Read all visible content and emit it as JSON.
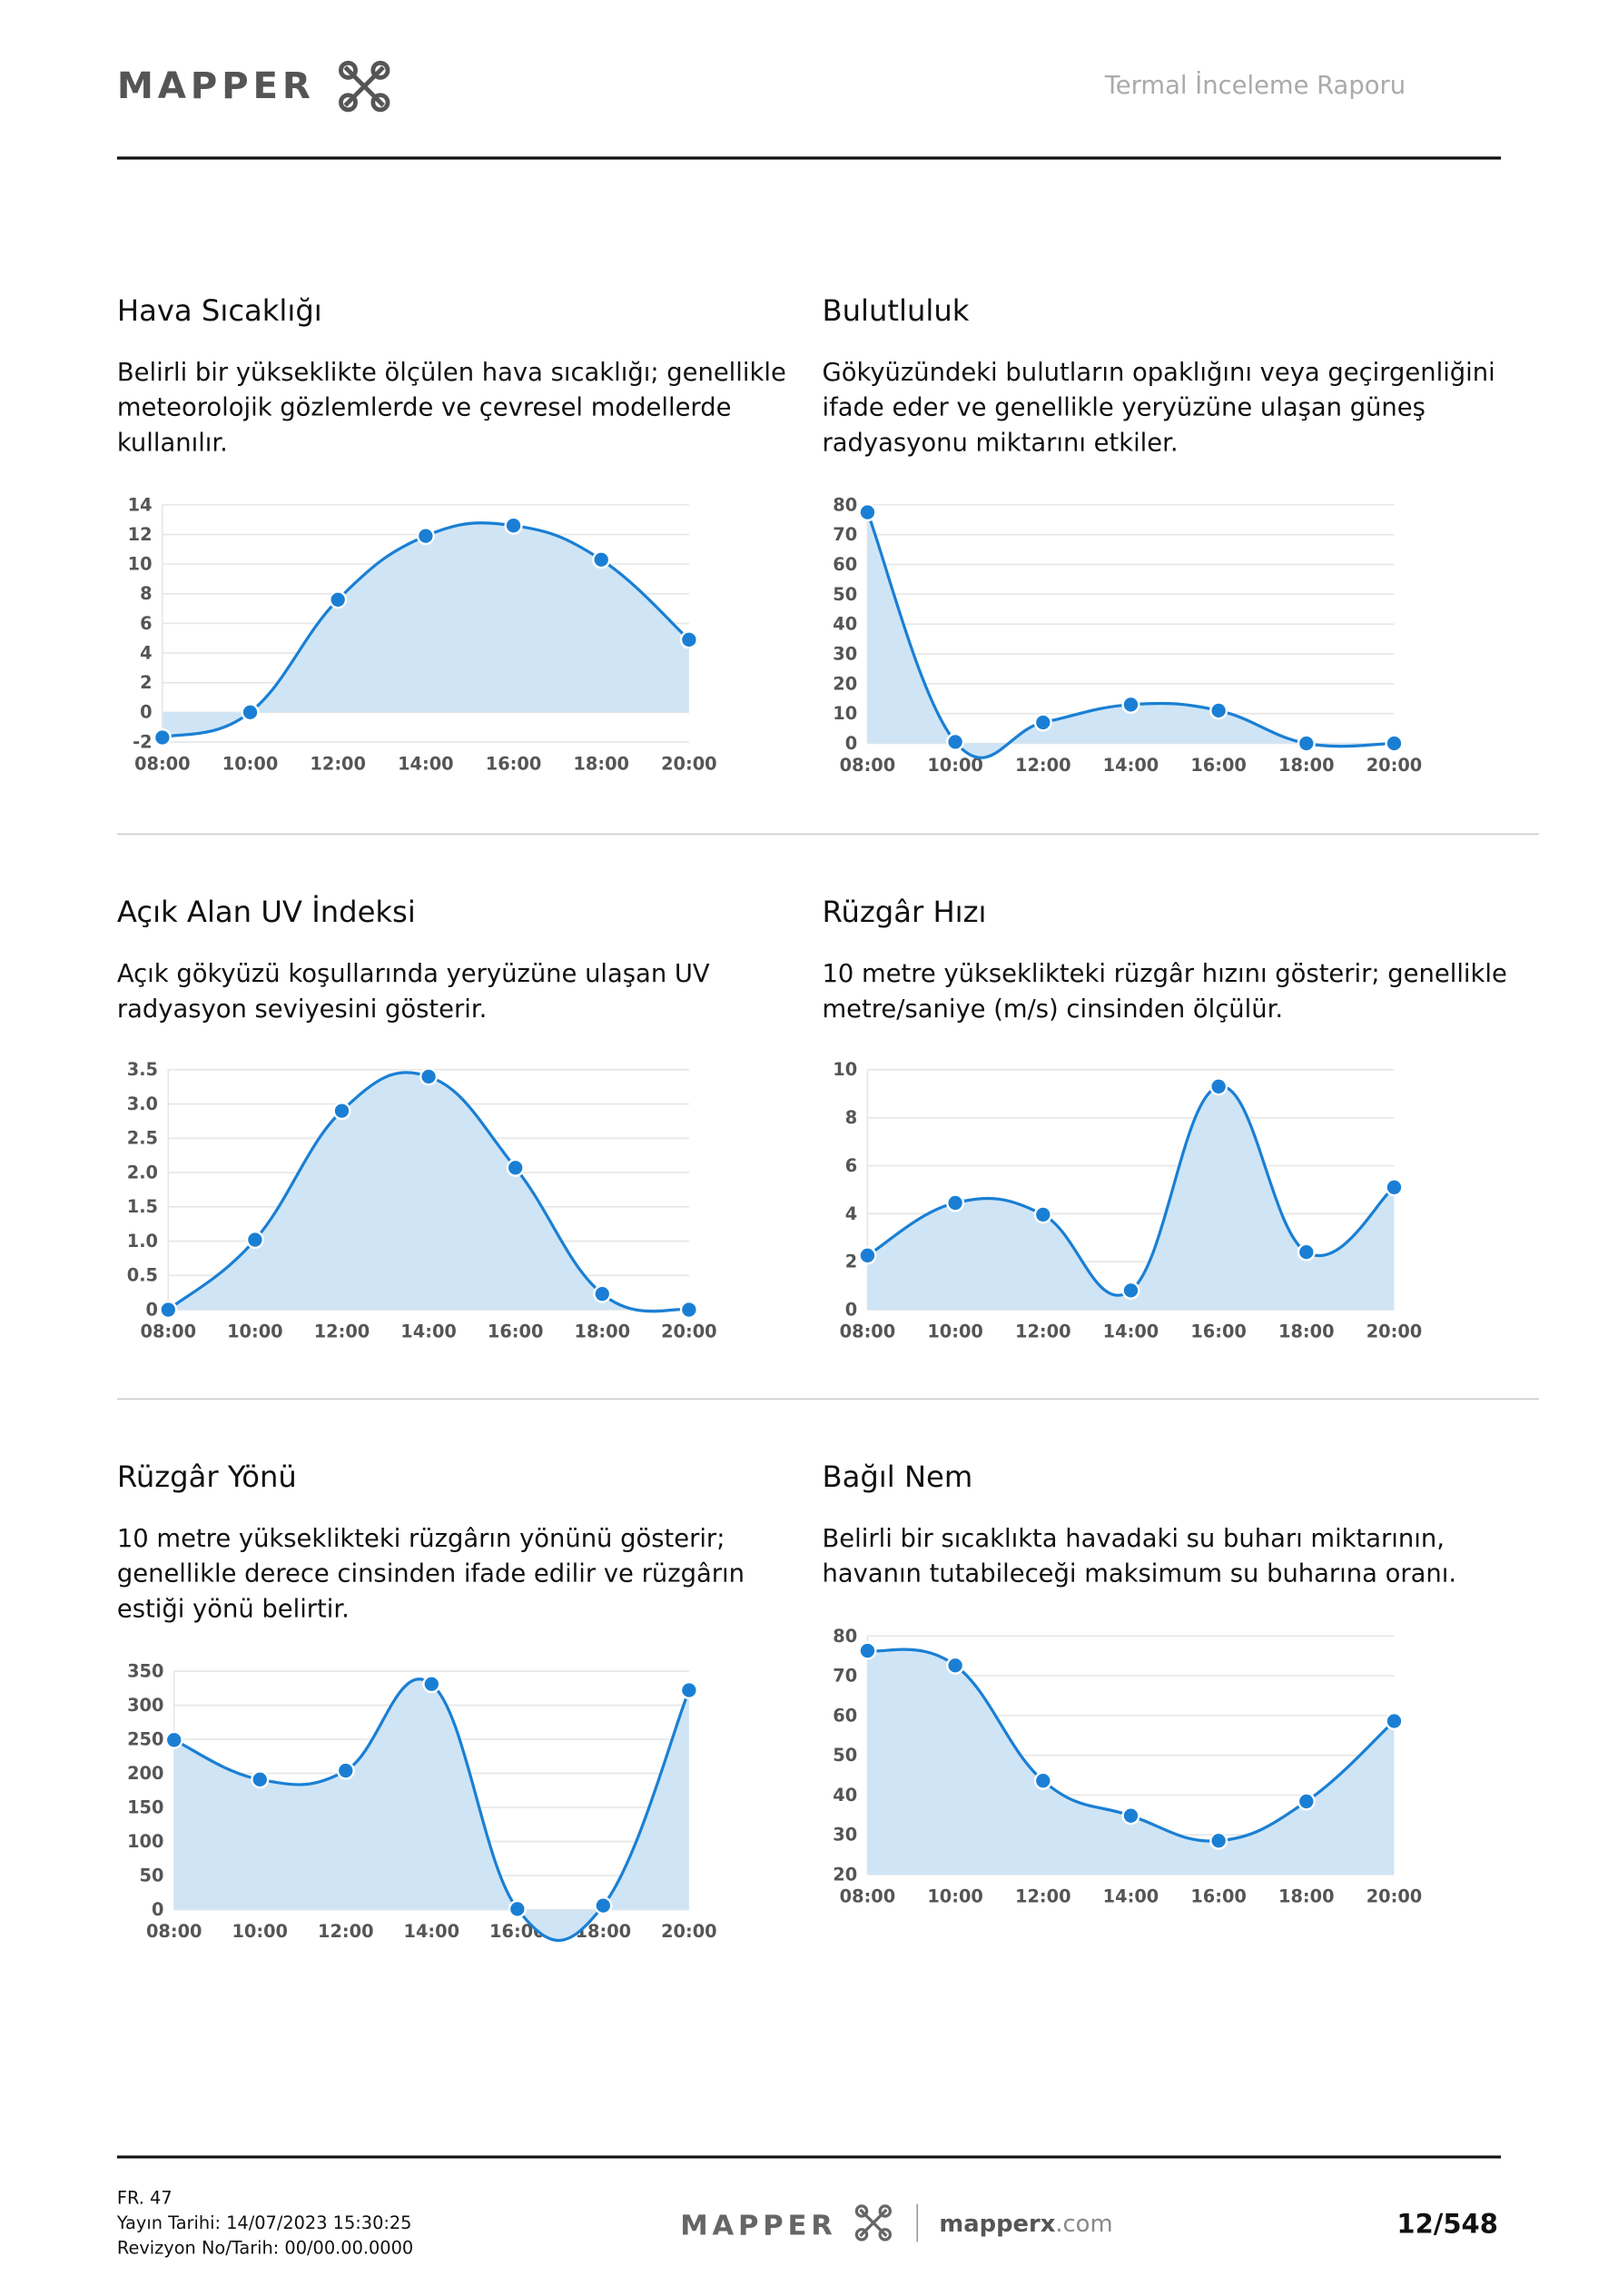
{
  "header": {
    "logo": "MAPPER",
    "report_title": "Termal İnceleme Raporu"
  },
  "chart_data": [
    {
      "type": "line",
      "title": "Hava Sıcaklığı",
      "description": [
        "Belirli bir yükseklikte ölçülen hava sıcaklığı; genellikle",
        "meteorolojik gözlemlerde ve çevresel modellerde",
        "kullanılır."
      ],
      "categories": [
        "08:00",
        "10:00",
        "12:00",
        "14:00",
        "16:00",
        "18:00",
        "20:00"
      ],
      "values": [
        -1.7,
        0,
        7.6,
        11.9,
        12.6,
        10.3,
        4.9
      ],
      "ylim": [
        -2,
        14
      ],
      "yticks": [
        -2,
        0,
        2,
        4,
        6,
        8,
        10,
        12,
        14
      ],
      "color": "#1a7fd4",
      "grid": true
    },
    {
      "type": "line",
      "title": "Bulutluluk",
      "description": [
        "Gökyüzündeki bulutların opaklığını veya geçirgenliğini",
        "ifade eder ve genellikle yeryüzüne ulaşan güneş",
        "radyasyonu miktarını etkiler."
      ],
      "categories": [
        "08:00",
        "10:00",
        "12:00",
        "14:00",
        "16:00",
        "18:00",
        "20:00"
      ],
      "values": [
        77.5,
        0.5,
        7,
        13,
        11,
        0,
        0
      ],
      "ylim": [
        0,
        80
      ],
      "yticks": [
        0,
        10,
        20,
        30,
        40,
        50,
        60,
        70,
        80
      ],
      "color": "#1a7fd4",
      "grid": true
    },
    {
      "type": "line",
      "title": "Açık Alan UV İndeksi",
      "description": [
        "Açık gökyüzü koşullarında yeryüzüne ulaşan UV",
        "radyasyon seviyesini gösterir."
      ],
      "categories": [
        "08:00",
        "10:00",
        "12:00",
        "14:00",
        "16:00",
        "18:00",
        "20:00"
      ],
      "values": [
        0,
        1.02,
        2.9,
        3.4,
        2.07,
        0.23,
        0
      ],
      "ylim": [
        0,
        3.5
      ],
      "yticks": [
        0,
        0.5,
        {
          "value": 1,
          "label": "1.0"
        },
        1.5,
        {
          "value": 2,
          "label": "2.0"
        },
        2.5,
        {
          "value": 3,
          "label": "3.0"
        },
        3.5
      ],
      "color": "#1a7fd4",
      "grid": true
    },
    {
      "type": "line",
      "title": "Rüzgâr Hızı",
      "description": [
        "10 metre yükseklikteki rüzgâr hızını gösterir; genellikle",
        "metre/saniye (m/s) cinsinden ölçülür."
      ],
      "categories": [
        "08:00",
        "10:00",
        "12:00",
        "14:00",
        "16:00",
        "18:00",
        "20:00"
      ],
      "values": [
        2.26,
        4.45,
        3.96,
        0.8,
        9.3,
        2.4,
        5.1
      ],
      "ylim": [
        0,
        10
      ],
      "yticks": [
        0,
        2,
        4,
        6,
        8,
        10
      ],
      "color": "#1a7fd4",
      "grid": true
    },
    {
      "type": "line",
      "title": "Rüzgâr Yönü",
      "description": [
        "10 metre yükseklikteki rüzgârın yönünü gösterir;",
        "genellikle derece cinsinden ifade edilir ve rüzgârın",
        "estiği yönü belirtir."
      ],
      "categories": [
        "08:00",
        "10:00",
        "12:00",
        "14:00",
        "16:00",
        "18:00",
        "20:00"
      ],
      "values": [
        249,
        191,
        204,
        331,
        1,
        6,
        322
      ],
      "ylim": [
        0,
        350
      ],
      "yticks": [
        0,
        50,
        100,
        150,
        200,
        250,
        300,
        350
      ],
      "color": "#1a7fd4",
      "grid": true
    },
    {
      "type": "line",
      "title": "Bağıl Nem",
      "description": [
        "Belirli bir sıcaklıkta havadaki su buharı miktarının,",
        "havanın tutabileceği maksimum su buharına oranı."
      ],
      "categories": [
        "08:00",
        "10:00",
        "12:00",
        "14:00",
        "16:00",
        "18:00",
        "20:00"
      ],
      "values": [
        76.3,
        72.6,
        43.6,
        34.8,
        28.5,
        38.4,
        58.6
      ],
      "ylim": [
        20,
        80
      ],
      "yticks": [
        20,
        30,
        40,
        50,
        60,
        70,
        80
      ],
      "color": "#1a7fd4",
      "grid": true
    }
  ],
  "footer": {
    "form": "FR. 47",
    "publish": "Yayın Tarihi: 14/07/2023 15:30:25",
    "revision": "Revizyon No/Tarih: 00/00.00.0000",
    "logo": "MAPPER",
    "site": "mapperx",
    "site_tld": ".com",
    "page": "12/548"
  }
}
